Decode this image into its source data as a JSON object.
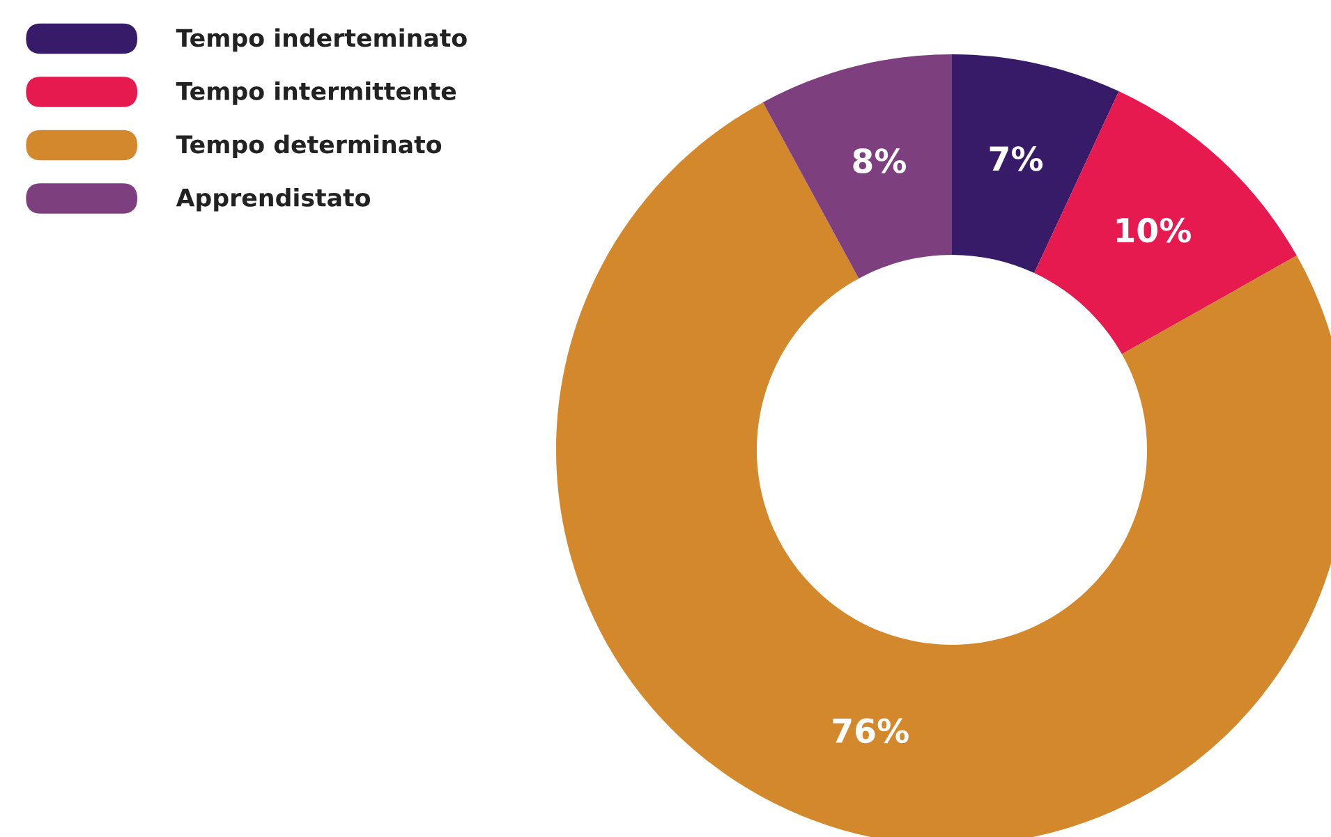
{
  "chart_data": {
    "type": "donut",
    "categories": [
      "Tempo inderteminato",
      "Tempo intermittente",
      "Tempo determinato",
      "Apprendistato"
    ],
    "values": [
      7,
      10,
      76,
      8
    ],
    "colors": [
      "#371b69",
      "#e61a4f",
      "#d4882c",
      "#7e3f7f"
    ],
    "value_labels": [
      "7%",
      "10%",
      "76%",
      "8%"
    ],
    "legend": "top left"
  }
}
